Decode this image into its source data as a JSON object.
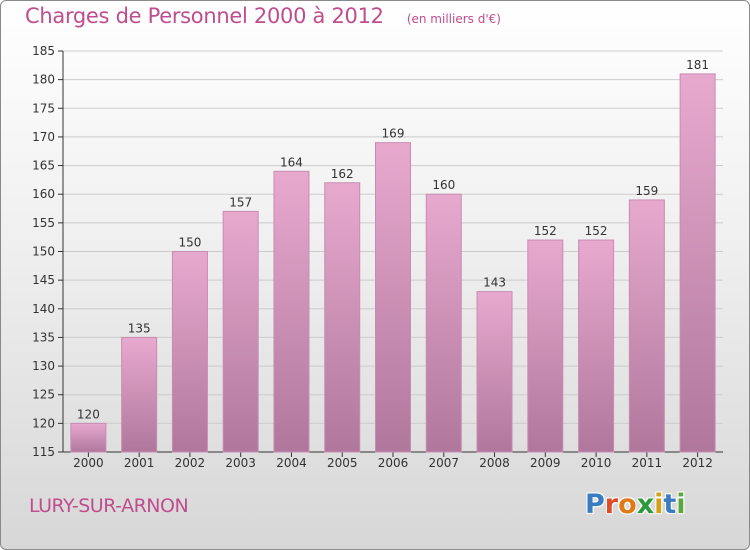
{
  "header": {
    "title": "Charges de Personnel 2000 à 2012",
    "subtitle": "(en milliers d'€)"
  },
  "footer": {
    "place": "LURY-SUR-ARNON",
    "logo_text": "Proxiti",
    "logo_colors": [
      "#3a7cc0",
      "#e04c28",
      "#e07a18",
      "#2a9a3a",
      "#d4a017",
      "#3a7cc0",
      "#5aa83a"
    ]
  },
  "colors": {
    "title": "#c04d8d",
    "bar_top": "#e8a9cf",
    "bar_bottom": "#b0779c",
    "bar_edge": "#c88cb1",
    "grid": "#cccccc",
    "axis": "#333333"
  },
  "chart_data": {
    "type": "bar",
    "title": "Charges de Personnel 2000 à 2012",
    "subtitle": "(en milliers d'€)",
    "categories": [
      "2000",
      "2001",
      "2002",
      "2003",
      "2004",
      "2005",
      "2006",
      "2007",
      "2008",
      "2009",
      "2010",
      "2011",
      "2012"
    ],
    "values": [
      120,
      135,
      150,
      157,
      164,
      162,
      169,
      160,
      143,
      152,
      152,
      159,
      181
    ],
    "ylim": [
      115,
      185
    ],
    "yticks": [
      115,
      120,
      125,
      130,
      135,
      140,
      145,
      150,
      155,
      160,
      165,
      170,
      175,
      180,
      185
    ],
    "grid": true,
    "data_labels": true,
    "xlabel": "",
    "ylabel": ""
  }
}
